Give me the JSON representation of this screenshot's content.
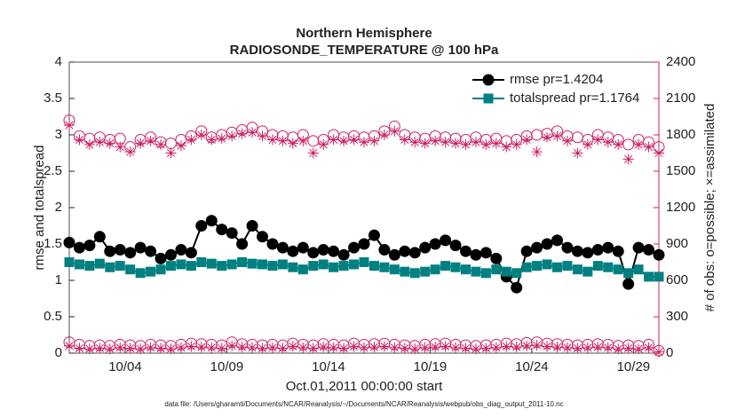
{
  "chart_data": {
    "type": "line",
    "title": "Northern Hemisphere",
    "subtitle": "RADIOSONDE_TEMPERATURE @ 100 hPa",
    "xlabel": "Oct.01,2011 00:00:00 start",
    "ylabel": "rmse and totalspread",
    "y2label": "# of obs: o=possible; ×=assimilated",
    "footnote": "data file: /Users/gharamti/Documents/NCAR/Reanalysis/~/Documents/NCAR/Reanalysis/webpub/obs_diag_output_2011-10.nc",
    "xlim": [
      0.25,
      29.25
    ],
    "xticks": [
      {
        "value": 3,
        "label": "10/04"
      },
      {
        "value": 8,
        "label": "10/09"
      },
      {
        "value": 13,
        "label": "10/14"
      },
      {
        "value": 18,
        "label": "10/19"
      },
      {
        "value": 23,
        "label": "10/24"
      },
      {
        "value": 28,
        "label": "10/29"
      }
    ],
    "ylim": [
      0,
      4
    ],
    "yticks": [
      0,
      0.5,
      1,
      1.5,
      2,
      2.5,
      3,
      3.5,
      4
    ],
    "y2lim": [
      0,
      2400
    ],
    "y2ticks": [
      0,
      300,
      600,
      900,
      1200,
      1500,
      1800,
      2100,
      2400
    ],
    "y2color": "#cc1f63",
    "legend": "northeast",
    "x": [
      0.25,
      0.75,
      1.25,
      1.75,
      2.25,
      2.75,
      3.25,
      3.75,
      4.25,
      4.75,
      5.25,
      5.75,
      6.25,
      6.75,
      7.25,
      7.75,
      8.25,
      8.75,
      9.25,
      9.75,
      10.25,
      10.75,
      11.25,
      11.75,
      12.25,
      12.75,
      13.25,
      13.75,
      14.25,
      14.75,
      15.25,
      15.75,
      16.25,
      16.75,
      17.25,
      17.75,
      18.25,
      18.75,
      19.25,
      19.75,
      20.25,
      20.75,
      21.25,
      21.75,
      22.25,
      22.75,
      23.25,
      23.75,
      24.25,
      24.75,
      25.25,
      25.75,
      26.25,
      26.75,
      27.25,
      27.75,
      28.25,
      28.75,
      29.25
    ],
    "series": [
      {
        "name": "rmse pr=1.4204",
        "color": "#000000",
        "marker": "circle",
        "filled": true,
        "line": true,
        "values": [
          1.52,
          1.45,
          1.48,
          1.6,
          1.4,
          1.42,
          1.38,
          1.45,
          1.4,
          1.3,
          1.35,
          1.42,
          1.38,
          1.75,
          1.82,
          1.7,
          1.65,
          1.5,
          1.75,
          1.6,
          1.5,
          1.45,
          1.4,
          1.45,
          1.38,
          1.42,
          1.4,
          1.35,
          1.45,
          1.5,
          1.62,
          1.42,
          1.35,
          1.4,
          1.38,
          1.45,
          1.5,
          1.55,
          1.48,
          1.4,
          1.35,
          1.38,
          1.3,
          1.05,
          0.9,
          1.4,
          1.45,
          1.5,
          1.55,
          1.45,
          1.4,
          1.38,
          1.42,
          1.45,
          1.4,
          0.95,
          1.45,
          1.42,
          1.35
        ]
      },
      {
        "name": "totalspread pr=1.1764",
        "color": "#008080",
        "marker": "square",
        "filled": true,
        "line": true,
        "values": [
          1.25,
          1.22,
          1.2,
          1.23,
          1.18,
          1.2,
          1.15,
          1.1,
          1.12,
          1.15,
          1.2,
          1.22,
          1.2,
          1.25,
          1.23,
          1.2,
          1.22,
          1.25,
          1.23,
          1.22,
          1.2,
          1.22,
          1.18,
          1.15,
          1.2,
          1.22,
          1.18,
          1.2,
          1.22,
          1.25,
          1.2,
          1.18,
          1.15,
          1.12,
          1.1,
          1.12,
          1.15,
          1.2,
          1.18,
          1.15,
          1.12,
          1.1,
          1.15,
          1.12,
          1.1,
          1.18,
          1.2,
          1.22,
          1.18,
          1.2,
          1.15,
          1.12,
          1.2,
          1.18,
          1.15,
          1.1,
          1.15,
          1.05,
          1.05
        ]
      },
      {
        "color": "#cc1f63",
        "marker": "circle",
        "filled": false,
        "line": false,
        "axis": "y2",
        "values": [
          1920,
          1790,
          1770,
          1780,
          1760,
          1770,
          1700,
          1760,
          1780,
          1740,
          1730,
          1760,
          1790,
          1830,
          1780,
          1800,
          1820,
          1840,
          1860,
          1830,
          1800,
          1790,
          1780,
          1800,
          1750,
          1760,
          1800,
          1780,
          1790,
          1780,
          1790,
          1830,
          1870,
          1800,
          1780,
          1770,
          1790,
          1780,
          1770,
          1760,
          1780,
          1760,
          1770,
          1750,
          1760,
          1790,
          1800,
          1810,
          1830,
          1790,
          1780,
          1760,
          1800,
          1780,
          1760,
          1720,
          1760,
          1740,
          1700
        ]
      },
      {
        "color": "#cc1f63",
        "marker": "asterisk",
        "filled": false,
        "line": false,
        "axis": "y2",
        "values": [
          1880,
          1760,
          1720,
          1740,
          1730,
          1700,
          1660,
          1730,
          1750,
          1720,
          1650,
          1710,
          1760,
          1800,
          1760,
          1770,
          1790,
          1810,
          1820,
          1790,
          1760,
          1750,
          1730,
          1750,
          1650,
          1720,
          1760,
          1750,
          1760,
          1740,
          1750,
          1800,
          1830,
          1760,
          1740,
          1730,
          1750,
          1740,
          1730,
          1720,
          1740,
          1720,
          1730,
          1700,
          1720,
          1760,
          1660,
          1780,
          1790,
          1750,
          1650,
          1720,
          1760,
          1740,
          1720,
          1600,
          1720,
          1700,
          1650
        ]
      },
      {
        "color": "#cc1f63",
        "marker": "circle",
        "filled": false,
        "line": false,
        "axis": "y2",
        "values": [
          90,
          70,
          60,
          65,
          60,
          70,
          65,
          60,
          70,
          65,
          60,
          70,
          80,
          75,
          70,
          65,
          90,
          75,
          70,
          65,
          70,
          65,
          80,
          70,
          65,
          75,
          70,
          65,
          80,
          70,
          75,
          80,
          70,
          65,
          60,
          70,
          75,
          80,
          70,
          65,
          60,
          65,
          70,
          80,
          75,
          85,
          90,
          80,
          75,
          70,
          65,
          70,
          75,
          70,
          60,
          65,
          60,
          70,
          20
        ]
      },
      {
        "color": "#cc1f63",
        "marker": "asterisk",
        "filled": false,
        "line": false,
        "axis": "y2",
        "values": [
          60,
          40,
          35,
          40,
          35,
          45,
          40,
          35,
          45,
          40,
          35,
          45,
          55,
          50,
          45,
          40,
          60,
          50,
          45,
          40,
          45,
          40,
          55,
          45,
          40,
          50,
          45,
          40,
          55,
          45,
          50,
          55,
          45,
          40,
          35,
          45,
          50,
          55,
          45,
          40,
          35,
          40,
          45,
          55,
          50,
          60,
          65,
          55,
          50,
          45,
          40,
          45,
          50,
          45,
          35,
          40,
          35,
          45,
          10
        ]
      }
    ]
  }
}
